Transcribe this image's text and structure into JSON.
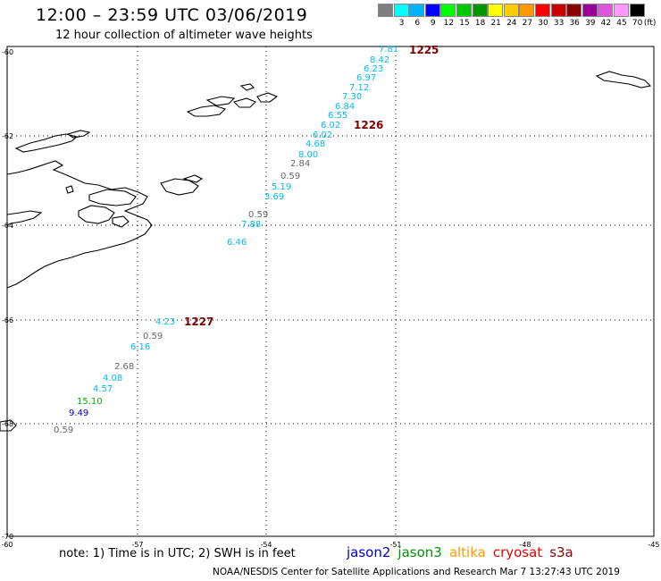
{
  "title": "12:00 – 23:59 UTC 03/06/2019",
  "subtitle": "12 hour collection of altimeter wave heights",
  "colorbar": {
    "unit": "(ft)",
    "colors": [
      "#7f7f7f",
      "#00ffff",
      "#00b2ff",
      "#0000ff",
      "#00ff00",
      "#00c800",
      "#009600",
      "#ffff00",
      "#ffcc00",
      "#ff9900",
      "#ff0000",
      "#cc0000",
      "#8b0000",
      "#990099",
      "#dd55dd",
      "#ff99ff",
      "#000000"
    ],
    "labels": [
      "3",
      "6",
      "9",
      "12",
      "15",
      "18",
      "21",
      "24",
      "27",
      "30",
      "33",
      "36",
      "39",
      "42",
      "45",
      "70"
    ]
  },
  "axes": {
    "lon_labels": [
      "-60",
      "-57",
      "-54",
      "-51",
      "-48",
      "-45"
    ],
    "lat_labels": [
      "-60",
      "-62",
      "-64",
      "-66",
      "-68",
      "-70"
    ]
  },
  "time_labels": [
    "1225",
    "1226",
    "1227"
  ],
  "wave_heights": [
    {
      "text": "7.81",
      "color": "#00bbee"
    },
    {
      "text": "8.42",
      "color": "#00bbee"
    },
    {
      "text": "6.23",
      "color": "#00bbee"
    },
    {
      "text": "6.97",
      "color": "#00bbee"
    },
    {
      "text": "7.12",
      "color": "#00bbee"
    },
    {
      "text": "7.30",
      "color": "#00bbee"
    },
    {
      "text": "6.84",
      "color": "#00bbee"
    },
    {
      "text": "6.55",
      "color": "#00bbee"
    },
    {
      "text": "6.02",
      "color": "#00bbee"
    },
    {
      "text": "6.02",
      "color": "#00bbee"
    },
    {
      "text": "4.68",
      "color": "#00bbee"
    },
    {
      "text": "8.00",
      "color": "#00bbee"
    },
    {
      "text": "2.84",
      "color": "#666666"
    },
    {
      "text": "0.59",
      "color": "#666666"
    },
    {
      "text": "5.19",
      "color": "#00bbee"
    },
    {
      "text": "3.69",
      "color": "#00bbee"
    },
    {
      "text": "0.59",
      "color": "#666666"
    },
    {
      "text": "7.88",
      "color": "#00bbee"
    },
    {
      "text": "6.46",
      "color": "#00bbee"
    },
    {
      "text": "4.23",
      "color": "#00bbee"
    },
    {
      "text": "0.59",
      "color": "#666666"
    },
    {
      "text": "6.16",
      "color": "#00bbee"
    },
    {
      "text": "2.68",
      "color": "#666666"
    },
    {
      "text": "4.08",
      "color": "#00bbee"
    },
    {
      "text": "4.57",
      "color": "#00bbee"
    },
    {
      "text": "15.10",
      "color": "#00b000"
    },
    {
      "text": "9.49",
      "color": "#0000cc"
    },
    {
      "text": "0.59",
      "color": "#666666"
    }
  ],
  "note": "note: 1) Time is in UTC; 2) SWH is in feet",
  "satellites": [
    {
      "name": "jason2",
      "color": "#0000cc"
    },
    {
      "name": "jason3",
      "color": "#009600"
    },
    {
      "name": "altika",
      "color": "#ff9900"
    },
    {
      "name": "cryosat",
      "color": "#ee0000"
    },
    {
      "name": "s3a",
      "color": "#8b0000"
    }
  ],
  "credit": "NOAA/NESDIS Center for Satellite Applications and Research   Mar  7 13:27:43 UTC 2019"
}
